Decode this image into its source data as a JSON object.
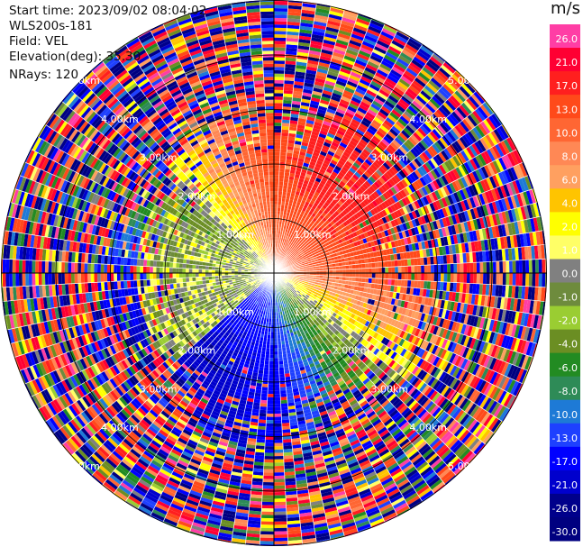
{
  "header": {
    "start_time": "Start time: 2023/09/02 08:04:02",
    "instrument": "WLS200s-181",
    "field": "Field: VEL",
    "elevation": "Elevation(deg): 35.30",
    "nrays": "NRays: 120"
  },
  "colorbar": {
    "units": "m/s",
    "tick_labels": [
      "26.0",
      "21.0",
      "17.0",
      "13.0",
      "10.0",
      "8.0",
      "6.0",
      "4.0",
      "2.0",
      "1.0",
      "0.0",
      "-1.0",
      "-2.0",
      "-4.0",
      "-6.0",
      "-8.0",
      "-10.0",
      "-13.0",
      "-17.0",
      "-21.0",
      "-26.0",
      "-30.0"
    ],
    "colors": [
      "#ff3ea5",
      "#ff0033",
      "#ff1f1f",
      "#ff4a1a",
      "#ff6633",
      "#ff8855",
      "#ffa060",
      "#ffc400",
      "#ffff00",
      "#ffff66",
      "#808080",
      "#6e8b3d",
      "#9acd32",
      "#6b8e23",
      "#228b22",
      "#2e8b57",
      "#1e7ad6",
      "#1e40ff",
      "#0000ff",
      "#0000cd",
      "#00008b",
      "#000080"
    ]
  },
  "chart_data": {
    "type": "heatmap",
    "title": "",
    "projection": "polar-ppi",
    "n_rays": 120,
    "ring_labels": [
      "1.00km",
      "2.00km",
      "3.00km",
      "4.00km",
      "5.00km"
    ],
    "max_range_km": 5.0,
    "value_range": [
      -30,
      26
    ],
    "pattern": {
      "near_field_northeast_to_east": "positive velocities (1 to 21 m/s, red/orange/yellow)",
      "near_field_southwest_to_south": "negative velocities (-10 to -21 m/s, blue)",
      "west_band": "near zero (-2 to 1 m/s, gray/green)",
      "far_field": "noisy multicolor beyond about 2.5 km"
    }
  }
}
